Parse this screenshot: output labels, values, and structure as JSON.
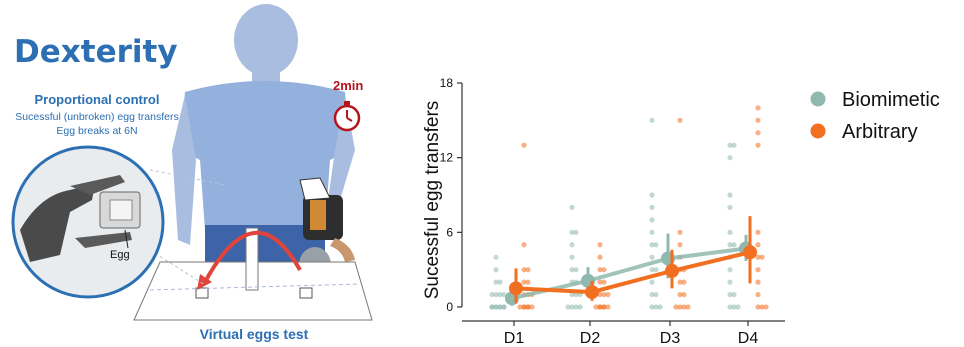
{
  "figure": {
    "title": "Dexterity",
    "control_heading": "Proportional control",
    "description_lines": [
      "Sucessful (unbroken) egg transfers",
      "Egg breaks at 6N"
    ],
    "timer_label": "2min",
    "egg_label": "Egg",
    "test_label": "Virtual eggs test"
  },
  "colors": {
    "biomimetic": "#8fb8ae",
    "arbitrary": "#f26f21",
    "title_blue": "#2c6fb3",
    "timer_red": "#b5141c",
    "person_blue": "#94b1dd",
    "arrow_red": "#e0443a"
  },
  "chart_data": {
    "type": "scatter",
    "x": [
      "D1",
      "D2",
      "D3",
      "D4"
    ],
    "ylabel": "Sucessful egg transfers",
    "xlabel": "",
    "ylim": [
      0,
      18
    ],
    "yticks": [
      0,
      6,
      12,
      18
    ],
    "legend_position": "right",
    "series": [
      {
        "name": "Biomimetic",
        "color": "#8fb8ae",
        "means": [
          0.7,
          2.1,
          3.9,
          4.7
        ],
        "ci_low": [
          0.1,
          1.0,
          2.3,
          3.7
        ],
        "ci_high": [
          1.5,
          3.2,
          5.9,
          5.8
        ],
        "points": [
          [
            0,
            0,
            0,
            0,
            0,
            0,
            0,
            0,
            1,
            1,
            1,
            1,
            2,
            2,
            3,
            4
          ],
          [
            0,
            0,
            0,
            0,
            1,
            1,
            1,
            2,
            2,
            3,
            3,
            4,
            5,
            6,
            6,
            8
          ],
          [
            0,
            0,
            0,
            1,
            1,
            2,
            3,
            3,
            4,
            5,
            5,
            6,
            7,
            8,
            9,
            15
          ],
          [
            0,
            0,
            0,
            1,
            1,
            2,
            3,
            4,
            5,
            5,
            6,
            8,
            9,
            12,
            13,
            13
          ]
        ]
      },
      {
        "name": "Arbitrary",
        "color": "#f26f21",
        "means": [
          1.5,
          1.2,
          2.9,
          4.4
        ],
        "ci_low": [
          0.3,
          0.5,
          1.5,
          1.9
        ],
        "ci_high": [
          3.1,
          2.1,
          4.6,
          7.3
        ],
        "points": [
          [
            0,
            0,
            0,
            0,
            0,
            0,
            1,
            1,
            1,
            2,
            2,
            3,
            3,
            5,
            13
          ],
          [
            0,
            0,
            0,
            0,
            0,
            0,
            1,
            1,
            1,
            2,
            2,
            3,
            3,
            4,
            5
          ],
          [
            0,
            0,
            0,
            0,
            1,
            1,
            2,
            2,
            3,
            3,
            4,
            5,
            6,
            15
          ],
          [
            0,
            0,
            0,
            1,
            2,
            3,
            4,
            4,
            5,
            6,
            13,
            14,
            15,
            16
          ]
        ]
      }
    ]
  }
}
